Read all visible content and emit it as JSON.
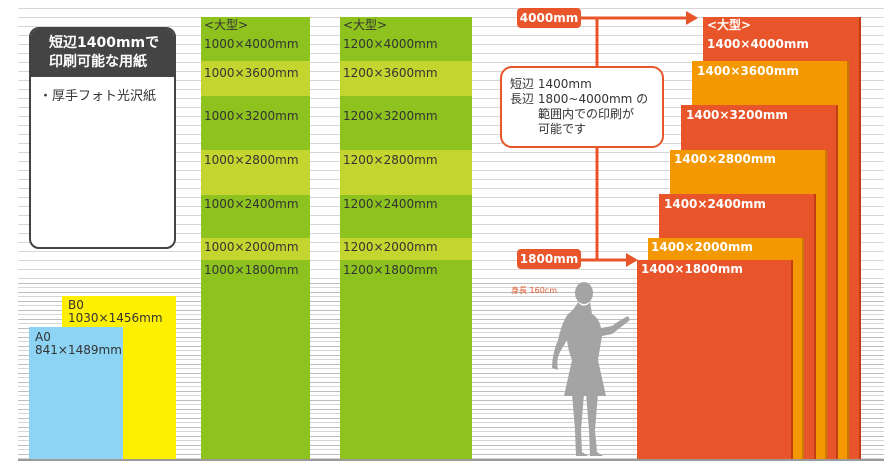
{
  "info_box": {
    "title_line1": "短辺1400mmで",
    "title_line2": "印刷可能な用紙",
    "item": "・厚手フォト光沢紙"
  },
  "small_papers": [
    {
      "name": "A0",
      "size": "841×1489mm",
      "color": "#8dd3f4"
    },
    {
      "name": "B0",
      "size": "1030×1456mm",
      "color": "#fff000"
    }
  ],
  "column_1000": {
    "header": "<大型>",
    "sizes": [
      "1000×4000mm",
      "1000×3600mm",
      "1000×3200mm",
      "1000×2800mm",
      "1000×2400mm",
      "1000×2000mm",
      "1000×1800mm"
    ]
  },
  "column_1200": {
    "header": "<大型>",
    "sizes": [
      "1200×4000mm",
      "1200×3600mm",
      "1200×3200mm",
      "1200×2800mm",
      "1200×2400mm",
      "1200×2000mm",
      "1200×1800mm"
    ]
  },
  "column_1400": {
    "header": "<大型>",
    "sizes": [
      "1400×4000mm",
      "1400×3600mm",
      "1400×3200mm",
      "1400×2800mm",
      "1400×2400mm",
      "1400×2000mm",
      "1400×1800mm"
    ]
  },
  "callout": {
    "line1_label": "短辺",
    "line1_value": "1400mm",
    "line2_label": "長辺",
    "line2_value": "1800~4000mm の",
    "line3": "範囲内での印刷が",
    "line4": "可能です"
  },
  "tags": {
    "max": "4000mm",
    "min": "1800mm"
  },
  "person_label": "身長 160cm",
  "colors": {
    "green_dark": "#8dc21f",
    "green_light": "#c5d52f",
    "orange_red": "#e8552a",
    "orange": "#f39800",
    "info_dark": "#444444"
  }
}
